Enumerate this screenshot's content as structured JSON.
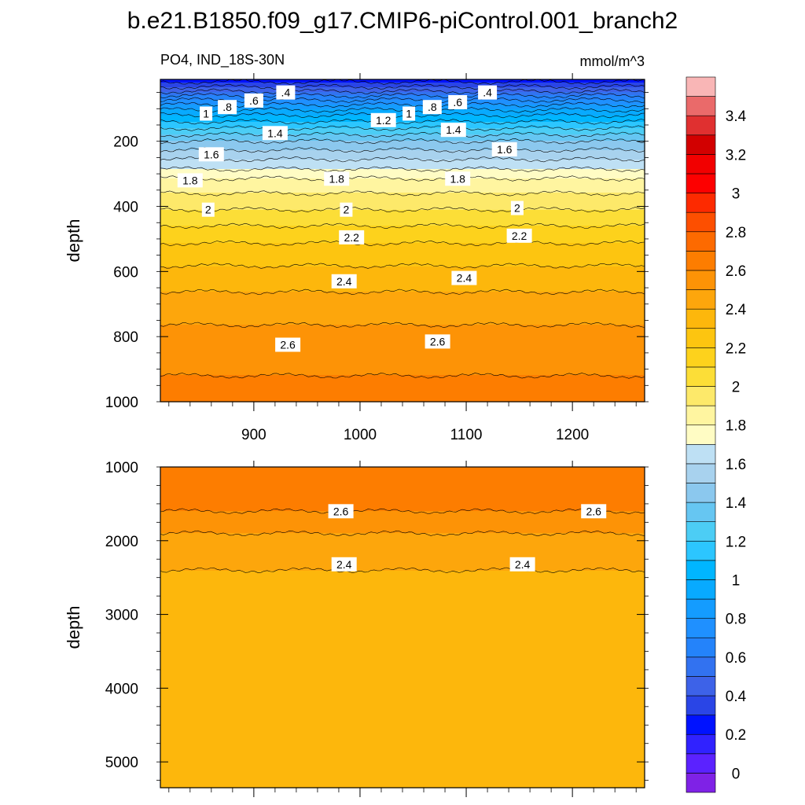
{
  "title": "b.e21.B1850.f09_g17.CMIP6-piControl.001_branch2",
  "variable_label": "PO4, IND_18S-30N",
  "units": "mmol/m^3",
  "chart_data": [
    {
      "type": "contour",
      "panel": "upper",
      "ylabel": "depth",
      "xlabel": "",
      "xlim": [
        812,
        1268
      ],
      "ylim": [
        1000,
        10
      ],
      "x_ticks": [
        900,
        1000,
        1100,
        1200
      ],
      "x_tick_labels": [
        "900",
        "1000",
        "1100",
        "1200"
      ],
      "y_ticks": [
        200,
        400,
        600,
        800,
        1000
      ],
      "y_tick_labels": [
        "200",
        "400",
        "600",
        "800",
        "1000"
      ],
      "contour_interval": 0.1,
      "profile": {
        "depth": [
          10,
          40,
          80,
          120,
          160,
          200,
          240,
          280,
          300,
          320,
          340,
          380,
          420,
          460,
          500,
          560,
          620,
          680,
          740,
          800,
          860,
          920,
          1000
        ],
        "po4": [
          0.25,
          0.45,
          0.75,
          1.0,
          1.2,
          1.4,
          1.55,
          1.68,
          1.75,
          1.82,
          1.86,
          1.94,
          2.02,
          2.1,
          2.18,
          2.27,
          2.35,
          2.42,
          2.48,
          2.53,
          2.58,
          2.6,
          2.62
        ]
      },
      "contour_labels": [
        {
          "text": ".4",
          "x": 930,
          "depth": 50
        },
        {
          "text": ".6",
          "x": 900,
          "depth": 75
        },
        {
          "text": ".8",
          "x": 875,
          "depth": 95
        },
        {
          "text": "1",
          "x": 855,
          "depth": 115
        },
        {
          "text": ".4",
          "x": 1120,
          "depth": 50
        },
        {
          "text": ".6",
          "x": 1092,
          "depth": 80
        },
        {
          "text": ".8",
          "x": 1068,
          "depth": 95
        },
        {
          "text": "1",
          "x": 1046,
          "depth": 115
        },
        {
          "text": "1.2",
          "x": 1022,
          "depth": 135
        },
        {
          "text": "1.4",
          "x": 920,
          "depth": 175
        },
        {
          "text": "1.4",
          "x": 1088,
          "depth": 165
        },
        {
          "text": "1.6",
          "x": 860,
          "depth": 240
        },
        {
          "text": "1.6",
          "x": 1136,
          "depth": 225
        },
        {
          "text": "1.8",
          "x": 840,
          "depth": 320
        },
        {
          "text": "1.8",
          "x": 978,
          "depth": 315
        },
        {
          "text": "1.8",
          "x": 1092,
          "depth": 315
        },
        {
          "text": "2",
          "x": 857,
          "depth": 410
        },
        {
          "text": "2",
          "x": 987,
          "depth": 410
        },
        {
          "text": "2",
          "x": 1148,
          "depth": 405
        },
        {
          "text": "2.2",
          "x": 992,
          "depth": 495
        },
        {
          "text": "2.2",
          "x": 1150,
          "depth": 490
        },
        {
          "text": "2.4",
          "x": 985,
          "depth": 630
        },
        {
          "text": "2.4",
          "x": 1098,
          "depth": 620
        },
        {
          "text": "2.6",
          "x": 932,
          "depth": 825
        },
        {
          "text": "2.6",
          "x": 1073,
          "depth": 815
        }
      ]
    },
    {
      "type": "contour",
      "panel": "lower",
      "ylabel": "depth",
      "xlabel": "",
      "xlim": [
        812,
        1268
      ],
      "ylim": [
        5350,
        1000
      ],
      "x_ticks": [
        900,
        1000,
        1100,
        1200
      ],
      "x_tick_labels": [
        "",
        "",
        "",
        ""
      ],
      "y_ticks": [
        1000,
        2000,
        3000,
        4000,
        5000
      ],
      "y_tick_labels": [
        "1000",
        "2000",
        "3000",
        "4000",
        "5000"
      ],
      "contour_interval": 0.1,
      "profile": {
        "depth": [
          1000,
          1200,
          1600,
          1900,
          2400,
          5350
        ],
        "po4": [
          2.62,
          2.68,
          2.6,
          2.5,
          2.4,
          2.35
        ]
      },
      "contour_labels": [
        {
          "text": "2.6",
          "x": 982,
          "depth": 1600
        },
        {
          "text": "2.6",
          "x": 1220,
          "depth": 1600
        },
        {
          "text": "2.4",
          "x": 985,
          "depth": 2320
        },
        {
          "text": "2.4",
          "x": 1153,
          "depth": 2320
        }
      ]
    }
  ],
  "colorbar": {
    "levels": [
      -0.1,
      0,
      0.1,
      0.2,
      0.3,
      0.4,
      0.5,
      0.6,
      0.7,
      0.8,
      0.9,
      1.0,
      1.1,
      1.2,
      1.3,
      1.4,
      1.5,
      1.6,
      1.7,
      1.8,
      1.9,
      2.0,
      2.1,
      2.2,
      2.3,
      2.4,
      2.5,
      2.6,
      2.7,
      2.8,
      2.9,
      3.0,
      3.1,
      3.2,
      3.3,
      3.4,
      3.5,
      3.6
    ],
    "colors": [
      "#7f22e6",
      "#5b22ff",
      "#3022ff",
      "#0012ff",
      "#2a45e6",
      "#3d62e8",
      "#3272f0",
      "#2483fa",
      "#1f90ff",
      "#149cff",
      "#08aaff",
      "#00b6ff",
      "#2cc6ff",
      "#4ccdf5",
      "#66c6f2",
      "#8bc8ee",
      "#a8d2ee",
      "#bee0f4",
      "#fffcc4",
      "#fff5a0",
      "#fde96a",
      "#fcde37",
      "#fdd21c",
      "#fdc510",
      "#fdb70c",
      "#fda60c",
      "#fd9306",
      "#fd7d00",
      "#fd6a00",
      "#fd4f00",
      "#fd2a00",
      "#fd0000",
      "#f20000",
      "#d20000",
      "#e03030",
      "#ea6a6a",
      "#f9b6b6"
    ],
    "tick_labels": [
      "0",
      "0.2",
      "0.4",
      "0.6",
      "0.8",
      "1",
      "1.2",
      "1.4",
      "1.6",
      "1.8",
      "2",
      "2.2",
      "2.4",
      "2.6",
      "2.8",
      "3",
      "3.2",
      "3.4"
    ]
  }
}
